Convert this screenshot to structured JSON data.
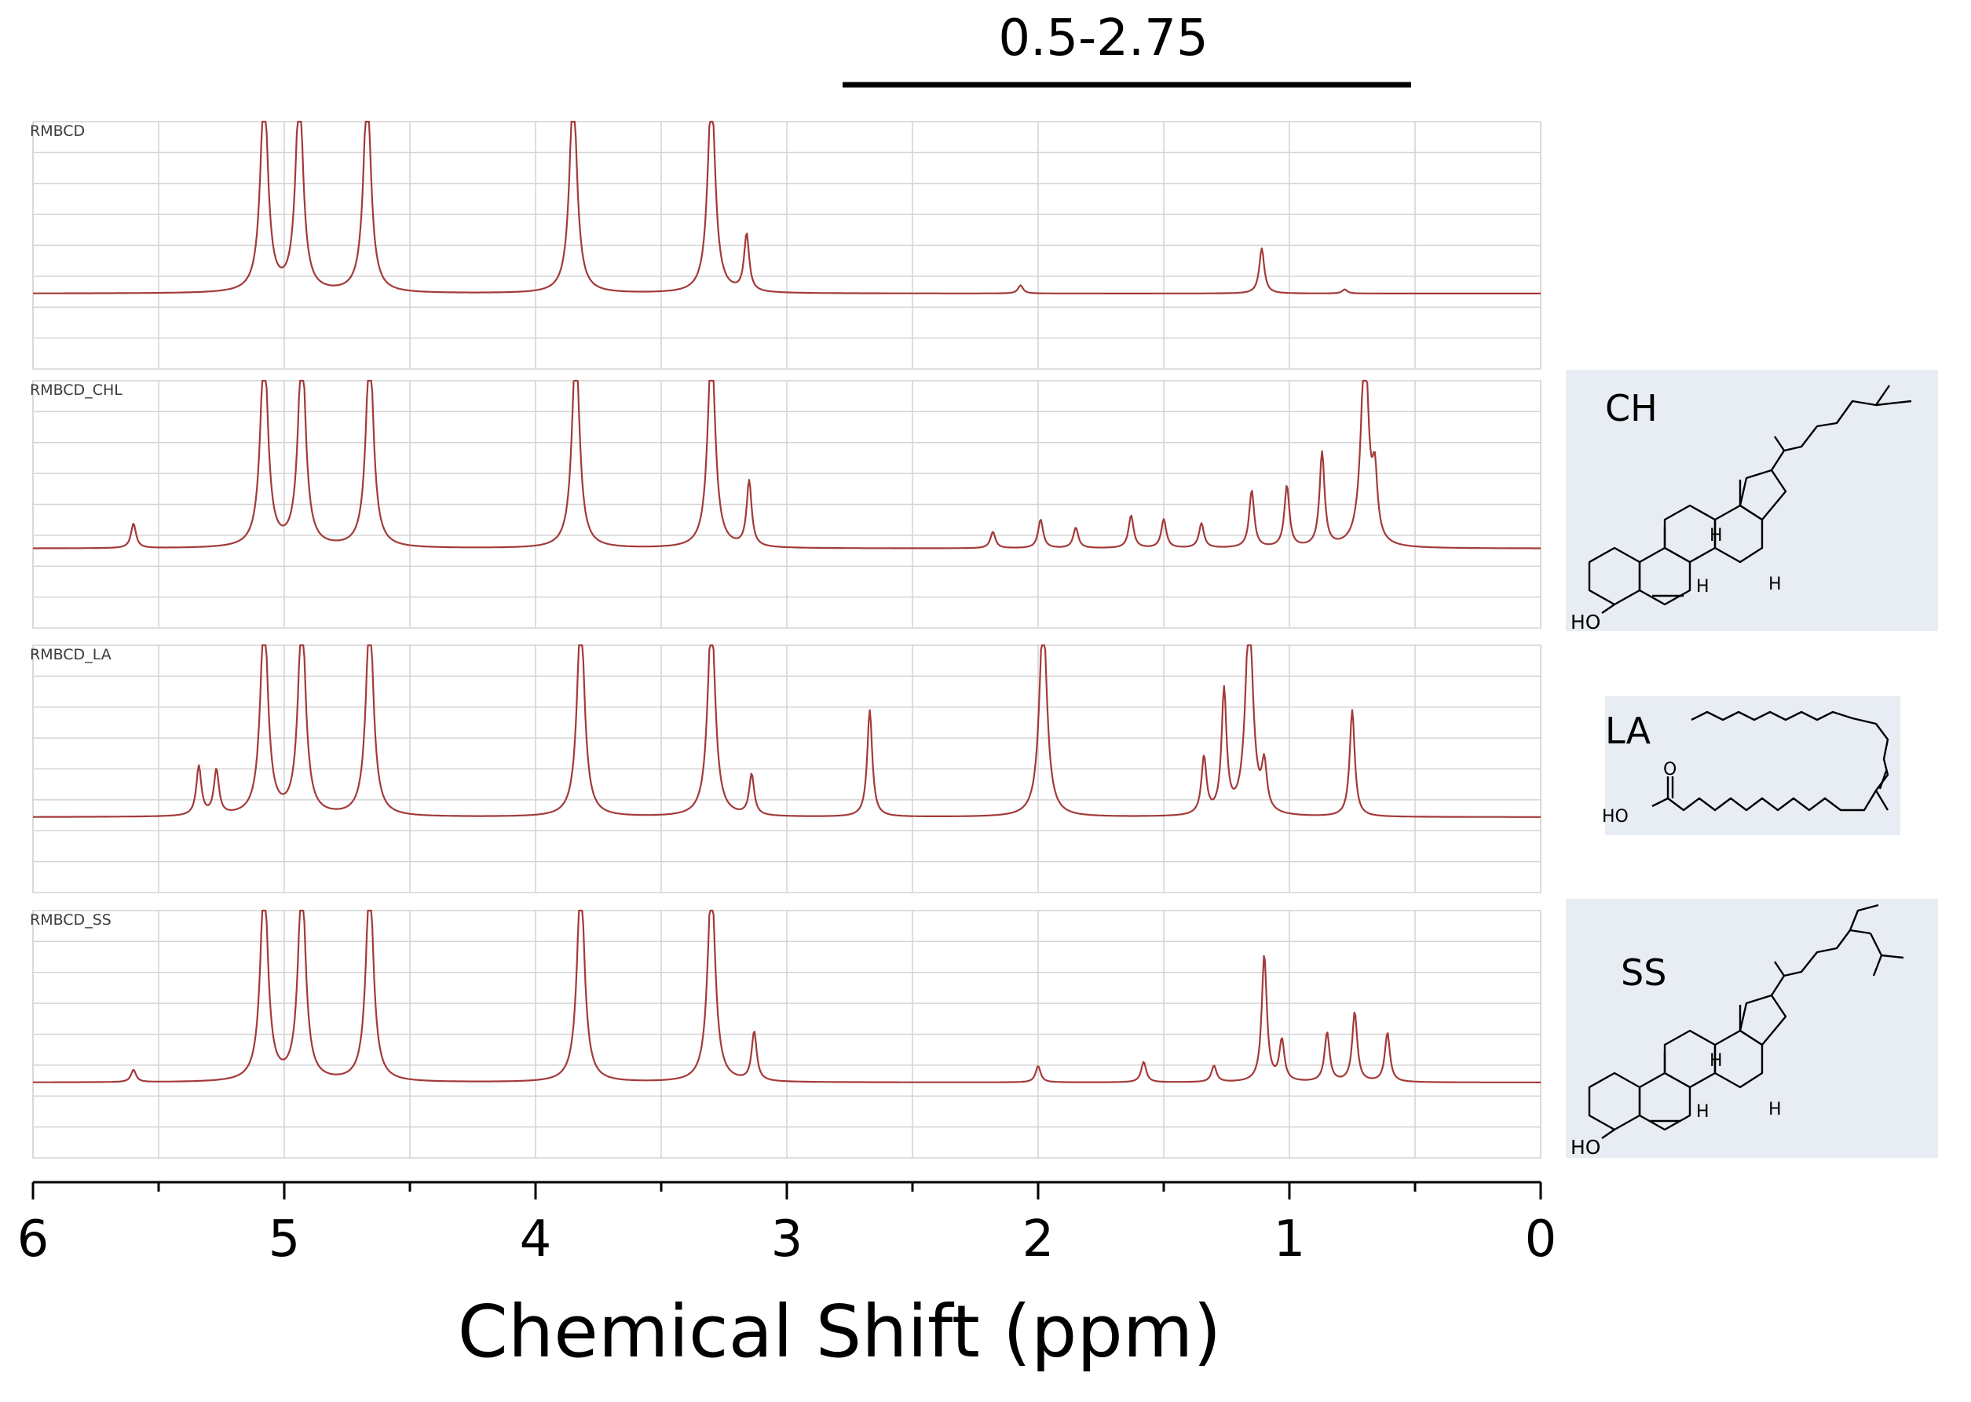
{
  "chart_data": {
    "type": "line",
    "subtype": "stacked 1H NMR spectra",
    "x_reversed": true,
    "xlim": [
      6,
      0
    ],
    "xticks": [
      6,
      5,
      4,
      3,
      2,
      1,
      0
    ],
    "xlabel": "Chemical Shift (ppm)",
    "grid": true,
    "line_color": "#a33a3a",
    "highlight_range": {
      "label": "0.5-2.75",
      "from": 2.75,
      "to": 0.5
    },
    "series": [
      {
        "name": "RMBCD",
        "baseline": 0.03,
        "peaks": [
          {
            "x": 5.08,
            "h": 1.0
          },
          {
            "x": 4.94,
            "h": 1.0
          },
          {
            "x": 4.67,
            "h": 1.0
          },
          {
            "x": 3.85,
            "h": 1.0
          },
          {
            "x": 3.3,
            "h": 1.0
          },
          {
            "x": 3.16,
            "h": 0.28
          },
          {
            "x": 2.07,
            "h": 0.04
          },
          {
            "x": 1.11,
            "h": 0.22
          },
          {
            "x": 0.78,
            "h": 0.02
          }
        ]
      },
      {
        "name": "RMBCD_CHL",
        "baseline": 0.05,
        "peaks": [
          {
            "x": 5.6,
            "h": 0.12
          },
          {
            "x": 5.08,
            "h": 1.0
          },
          {
            "x": 4.93,
            "h": 1.0
          },
          {
            "x": 4.66,
            "h": 1.0
          },
          {
            "x": 3.84,
            "h": 1.0
          },
          {
            "x": 3.3,
            "h": 1.0
          },
          {
            "x": 3.15,
            "h": 0.32
          },
          {
            "x": 2.18,
            "h": 0.08
          },
          {
            "x": 1.99,
            "h": 0.14
          },
          {
            "x": 1.85,
            "h": 0.1
          },
          {
            "x": 1.63,
            "h": 0.16
          },
          {
            "x": 1.5,
            "h": 0.14
          },
          {
            "x": 1.35,
            "h": 0.12
          },
          {
            "x": 1.15,
            "h": 0.28
          },
          {
            "x": 1.01,
            "h": 0.3
          },
          {
            "x": 0.87,
            "h": 0.46
          },
          {
            "x": 0.7,
            "h": 1.0
          },
          {
            "x": 0.66,
            "h": 0.3
          }
        ]
      },
      {
        "name": "RMBCD_LA",
        "baseline": 0.03,
        "peaks": [
          {
            "x": 5.34,
            "h": 0.24
          },
          {
            "x": 5.27,
            "h": 0.22
          },
          {
            "x": 5.08,
            "h": 1.0
          },
          {
            "x": 4.93,
            "h": 1.0
          },
          {
            "x": 4.66,
            "h": 1.0
          },
          {
            "x": 3.82,
            "h": 1.0
          },
          {
            "x": 3.3,
            "h": 1.0
          },
          {
            "x": 3.14,
            "h": 0.2
          },
          {
            "x": 2.67,
            "h": 0.52
          },
          {
            "x": 1.98,
            "h": 1.0
          },
          {
            "x": 1.34,
            "h": 0.28
          },
          {
            "x": 1.26,
            "h": 0.6
          },
          {
            "x": 1.16,
            "h": 1.0
          },
          {
            "x": 1.1,
            "h": 0.22
          },
          {
            "x": 0.75,
            "h": 0.52
          }
        ]
      },
      {
        "name": "RMBCD_SS",
        "baseline": 0.03,
        "peaks": [
          {
            "x": 5.6,
            "h": 0.06
          },
          {
            "x": 5.08,
            "h": 1.0
          },
          {
            "x": 4.93,
            "h": 1.0
          },
          {
            "x": 4.66,
            "h": 1.0
          },
          {
            "x": 3.82,
            "h": 1.0
          },
          {
            "x": 3.3,
            "h": 1.0
          },
          {
            "x": 3.13,
            "h": 0.24
          },
          {
            "x": 2.0,
            "h": 0.08
          },
          {
            "x": 1.58,
            "h": 0.1
          },
          {
            "x": 1.3,
            "h": 0.08
          },
          {
            "x": 1.1,
            "h": 0.62
          },
          {
            "x": 1.03,
            "h": 0.2
          },
          {
            "x": 0.85,
            "h": 0.24
          },
          {
            "x": 0.74,
            "h": 0.34
          },
          {
            "x": 0.61,
            "h": 0.24
          }
        ]
      }
    ]
  },
  "structures": [
    {
      "label": "CH",
      "atoms": {
        "hydroxyl": "HO",
        "hydrogen": "H"
      }
    },
    {
      "label": "LA",
      "atoms": {
        "hydroxyl": "HO",
        "oxygen": "O"
      }
    },
    {
      "label": "SS",
      "atoms": {
        "hydroxyl": "HO",
        "hydrogen": "H"
      }
    }
  ]
}
